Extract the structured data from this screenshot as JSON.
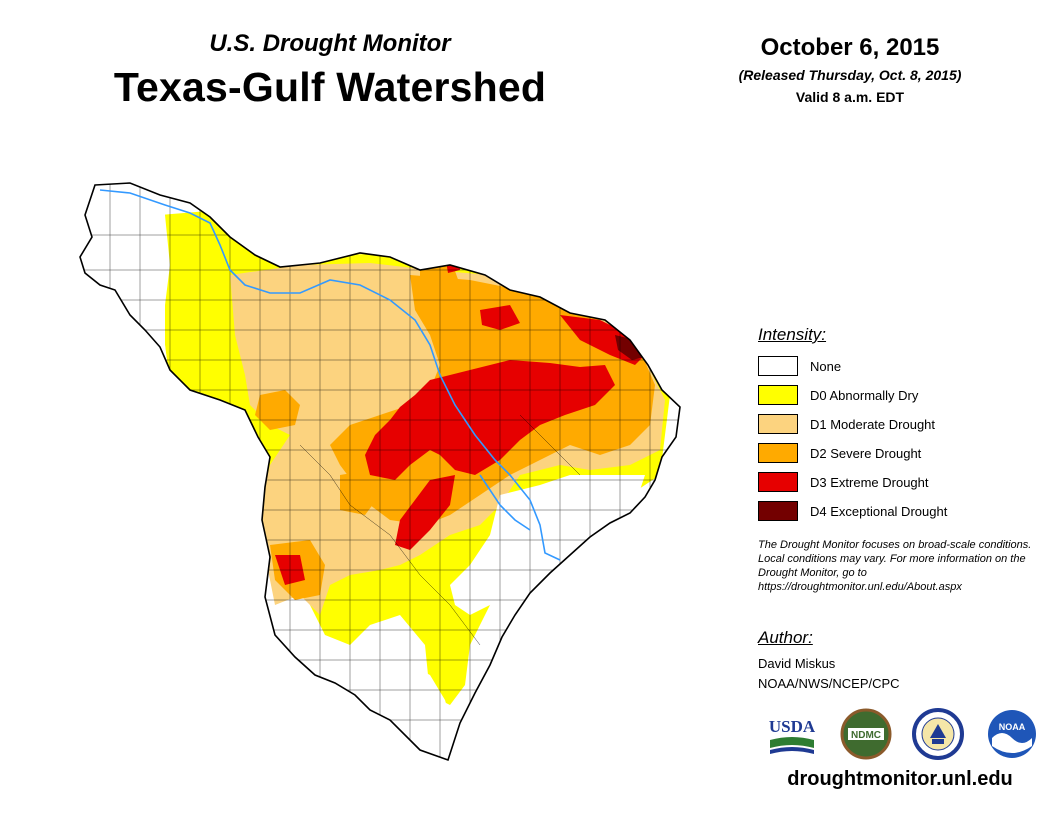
{
  "header": {
    "subtitle": "U.S. Drought Monitor",
    "title": "Texas-Gulf Watershed",
    "date": "October 6, 2015",
    "released": "(Released Thursday, Oct. 8, 2015)",
    "valid": "Valid 8 a.m. EDT"
  },
  "legend": {
    "heading": "Intensity:",
    "items": [
      {
        "label": "None",
        "color": "#ffffff"
      },
      {
        "label": "D0 Abnormally Dry",
        "color": "#ffff00"
      },
      {
        "label": "D1 Moderate Drought",
        "color": "#fcd37f"
      },
      {
        "label": "D2 Severe Drought",
        "color": "#ffaa00"
      },
      {
        "label": "D3 Extreme Drought",
        "color": "#e60000"
      },
      {
        "label": "D4 Exceptional Drought",
        "color": "#730000"
      }
    ]
  },
  "note": "The Drought Monitor focuses on broad-scale conditions. Local conditions may vary. For more information on the Drought Monitor, go to https://droughtmonitor.unl.edu/About.aspx",
  "author": {
    "heading": "Author:",
    "name": "David Miskus",
    "org": "NOAA/NWS/NCEP/CPC"
  },
  "logos": [
    {
      "name": "usda-logo",
      "text": "USDA"
    },
    {
      "name": "ndmc-logo",
      "text": "NDMC"
    },
    {
      "name": "doc-seal-logo",
      "text": ""
    },
    {
      "name": "noaa-logo",
      "text": "NOAA"
    }
  ],
  "website": "droughtmonitor.unl.edu",
  "colors": {
    "none": "#ffffff",
    "d0": "#ffff00",
    "d1": "#fcd37f",
    "d2": "#ffaa00",
    "d3": "#e60000",
    "d4": "#730000",
    "river": "#3399ff",
    "boundary": "#000000"
  }
}
